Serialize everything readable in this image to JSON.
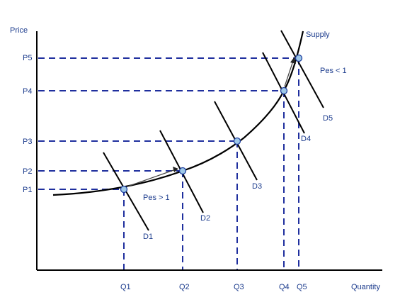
{
  "axes": {
    "y_label": "Price",
    "x_label": "Quantity"
  },
  "prices": [
    "P1",
    "P2",
    "P3",
    "P4",
    "P5"
  ],
  "quantities": [
    "Q1",
    "Q2",
    "Q3",
    "Q4",
    "Q5"
  ],
  "curves": {
    "supply": "Supply",
    "demand": [
      "D1",
      "D2",
      "D3",
      "D4",
      "D5"
    ]
  },
  "annotations": {
    "elastic": "Pes > 1",
    "inelastic": "Pes < 1"
  },
  "colors": {
    "guide": "#1f2f9e",
    "point_fill": "#9ec8e8",
    "label": "#1a3a8c"
  }
}
